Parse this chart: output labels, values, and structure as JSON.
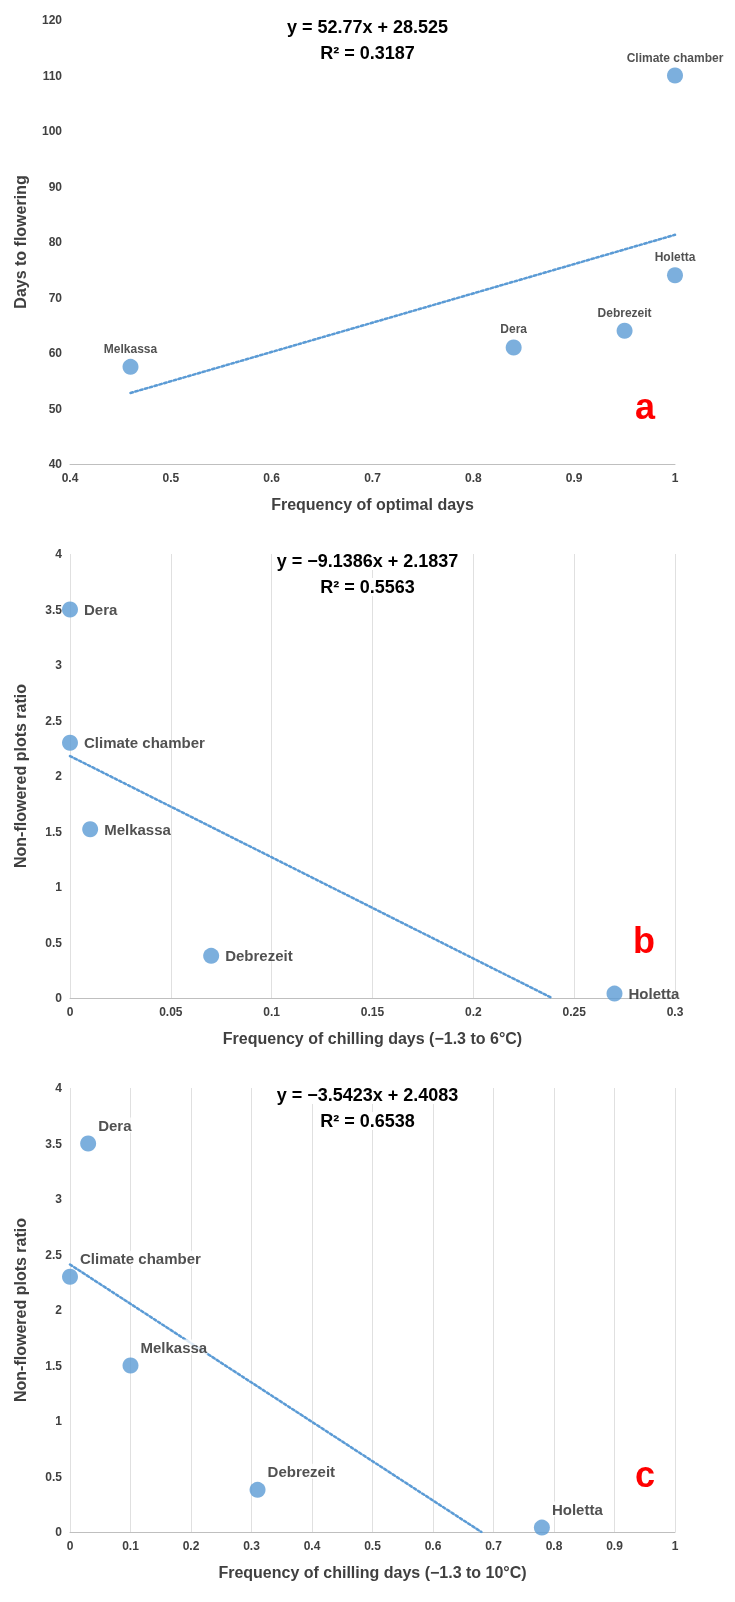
{
  "chart_data": [
    {
      "type": "scatter",
      "xlabel": "Frequency of optimal days",
      "ylabel": "Days to flowering",
      "xlim": [
        0.4,
        1
      ],
      "xticks": [
        0.4,
        0.5,
        0.6,
        0.7,
        0.8,
        0.9,
        1
      ],
      "ylim": [
        40,
        120
      ],
      "yticks": [
        40,
        50,
        60,
        70,
        80,
        90,
        100,
        110,
        120
      ],
      "grid": false,
      "marker": "circle",
      "series": [
        {
          "color": "#5b9bd5",
          "x": [
            0.46,
            0.84,
            0.95,
            1,
            1
          ],
          "values": [
            57.5,
            61,
            64,
            74,
            110
          ]
        },
        {
          "type": "line",
          "color": "#5b9bd5",
          "line_style": "dotted",
          "marker": "none",
          "x": [
            0.46,
            1
          ],
          "values": [
            52.8,
            81.3
          ]
        }
      ],
      "annotations": [
        "y = 52.77x + 28.525",
        "R² = 0.3187",
        "a",
        {
          "text": "Melkassa",
          "x": 0.46,
          "y": 57.5
        },
        {
          "text": "Dera",
          "x": 0.84,
          "y": 61
        },
        {
          "text": "Debrezeit",
          "x": 0.95,
          "y": 64
        },
        {
          "text": "Holetta",
          "x": 1,
          "y": 74
        },
        {
          "text": "Climate chamber",
          "x": 1,
          "y": 110
        }
      ]
    },
    {
      "type": "scatter",
      "xlabel": "Frequency of chilling days (−1.3 to 6°C)",
      "ylabel": "Non-flowered plots ratio",
      "xlim": [
        0,
        0.3
      ],
      "xticks": [
        0,
        0.05,
        0.1,
        0.15,
        0.2,
        0.25,
        0.3
      ],
      "ylim": [
        0,
        4
      ],
      "yticks": [
        0,
        0.5,
        1,
        1.5,
        2,
        2.5,
        3,
        3.5,
        4
      ],
      "grid": "x",
      "marker": "circle",
      "series": [
        {
          "color": "#5b9bd5",
          "x": [
            0,
            0,
            0.01,
            0.07,
            0.27
          ],
          "values": [
            3.5,
            2.3,
            1.52,
            0.38,
            0.04
          ]
        },
        {
          "type": "line",
          "color": "#5b9bd5",
          "line_style": "dotted",
          "marker": "none",
          "x": [
            0,
            0.239
          ],
          "values": [
            2.18,
            0
          ]
        }
      ],
      "annotations": [
        "y = −9.1386x + 2.1837",
        "R² = 0.5563",
        "b",
        {
          "text": "Dera",
          "x": 0,
          "y": 3.5
        },
        {
          "text": "Climate chamber",
          "x": 0,
          "y": 2.3
        },
        {
          "text": "Melkassa",
          "x": 0.01,
          "y": 1.52
        },
        {
          "text": "Debrezeit",
          "x": 0.07,
          "y": 0.38
        },
        {
          "text": "Holetta",
          "x": 0.27,
          "y": 0.04
        }
      ]
    },
    {
      "type": "scatter",
      "xlabel": "Frequency of chilling days (−1.3 to 10°C)",
      "ylabel": "Non-flowered plots ratio",
      "xlim": [
        0,
        1
      ],
      "xticks": [
        0,
        0.1,
        0.2,
        0.3,
        0.4,
        0.5,
        0.6,
        0.7,
        0.8,
        0.9,
        1
      ],
      "ylim": [
        0,
        4
      ],
      "yticks": [
        0,
        0.5,
        1,
        1.5,
        2,
        2.5,
        3,
        3.5,
        4
      ],
      "grid": "x",
      "marker": "circle",
      "series": [
        {
          "color": "#5b9bd5",
          "x": [
            0.03,
            0,
            0.1,
            0.31,
            0.78
          ],
          "values": [
            3.5,
            2.3,
            1.5,
            0.38,
            0.04
          ]
        },
        {
          "type": "line",
          "color": "#5b9bd5",
          "line_style": "dotted",
          "marker": "none",
          "x": [
            0,
            0.68
          ],
          "values": [
            2.41,
            0
          ]
        }
      ],
      "annotations": [
        "y = −3.5423x + 2.4083",
        "R² = 0.6538",
        "c",
        {
          "text": "Dera",
          "x": 0.03,
          "y": 3.5
        },
        {
          "text": "Climate chamber",
          "x": 0,
          "y": 2.3
        },
        {
          "text": "Melkassa",
          "x": 0.1,
          "y": 1.5
        },
        {
          "text": "Debrezeit",
          "x": 0.31,
          "y": 0.38
        },
        {
          "text": "Holetta",
          "x": 0.78,
          "y": 0.04
        }
      ]
    }
  ]
}
